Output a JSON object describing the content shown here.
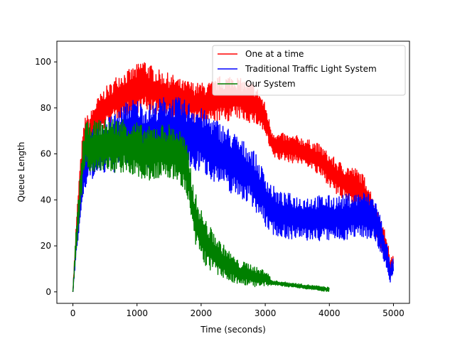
{
  "chart_data": {
    "type": "line",
    "title": "",
    "xlabel": "Time (seconds)",
    "ylabel": "Queue Length",
    "xlim": [
      -250,
      5250
    ],
    "ylim": [
      -5,
      109
    ],
    "xticks": [
      0,
      1000,
      2000,
      3000,
      4000,
      5000
    ],
    "yticks": [
      0,
      20,
      40,
      60,
      80,
      100
    ],
    "grid": false,
    "legend_position": "top-right",
    "series": [
      {
        "name": "One at a time",
        "color": "#ff0000",
        "x": [
          0,
          50,
          100,
          150,
          200,
          250,
          300,
          350,
          400,
          450,
          500,
          600,
          700,
          800,
          900,
          1000,
          1100,
          1200,
          1300,
          1400,
          1500,
          1600,
          1700,
          1800,
          1900,
          2000,
          2100,
          2200,
          2300,
          2400,
          2500,
          2600,
          2700,
          2800,
          2900,
          3000,
          3100,
          3200,
          3300,
          3400,
          3500,
          3600,
          3700,
          3800,
          3900,
          4000,
          4100,
          4200,
          4300,
          4400,
          4500,
          4600,
          4700,
          4800,
          4900,
          4950,
          5000
        ],
        "values": [
          0,
          25,
          45,
          60,
          70,
          68,
          72,
          74,
          76,
          78,
          80,
          82,
          85,
          86,
          87,
          88,
          90,
          88,
          87,
          86,
          85,
          84,
          83,
          83,
          82,
          82,
          82,
          83,
          84,
          84,
          85,
          84,
          83,
          82,
          80,
          75,
          65,
          63,
          63,
          62,
          62,
          61,
          60,
          58,
          56,
          53,
          50,
          48,
          47,
          46,
          44,
          40,
          32,
          25,
          18,
          10,
          14
        ],
        "noise": [
          0,
          4,
          6,
          8,
          8,
          8,
          8,
          9,
          9,
          9,
          9,
          9,
          10,
          10,
          10,
          11,
          12,
          11,
          10,
          10,
          10,
          10,
          9,
          9,
          9,
          9,
          9,
          9,
          10,
          10,
          10,
          9,
          9,
          9,
          8,
          7,
          6,
          6,
          6,
          6,
          6,
          6,
          6,
          7,
          7,
          7,
          8,
          8,
          8,
          8,
          8,
          8,
          8,
          7,
          6,
          4,
          3
        ]
      },
      {
        "name": "Traditional Traffic Light System",
        "color": "#0000ff",
        "x": [
          0,
          50,
          100,
          150,
          200,
          250,
          300,
          400,
          500,
          600,
          700,
          800,
          900,
          1000,
          1100,
          1200,
          1300,
          1400,
          1500,
          1600,
          1700,
          1800,
          1900,
          2000,
          2100,
          2200,
          2300,
          2400,
          2500,
          2600,
          2700,
          2800,
          2900,
          3000,
          3100,
          3200,
          3300,
          3400,
          3500,
          3600,
          3700,
          3800,
          3900,
          4000,
          4100,
          4200,
          4300,
          4400,
          4500,
          4600,
          4700,
          4800,
          4900,
          4950,
          5000
        ],
        "values": [
          0,
          20,
          35,
          48,
          55,
          58,
          60,
          62,
          63,
          64,
          66,
          68,
          70,
          70,
          68,
          68,
          69,
          70,
          70,
          70,
          69,
          68,
          67,
          66,
          64,
          62,
          60,
          58,
          56,
          54,
          52,
          50,
          45,
          40,
          36,
          34,
          33,
          33,
          32,
          32,
          32,
          32,
          32,
          32,
          32,
          32,
          33,
          33,
          34,
          33,
          32,
          25,
          15,
          8,
          12
        ],
        "noise": [
          0,
          5,
          8,
          10,
          10,
          11,
          11,
          12,
          12,
          13,
          13,
          14,
          14,
          14,
          14,
          14,
          14,
          15,
          15,
          15,
          15,
          15,
          15,
          14,
          14,
          14,
          14,
          14,
          14,
          13,
          13,
          13,
          12,
          12,
          11,
          10,
          10,
          10,
          10,
          10,
          10,
          10,
          10,
          10,
          10,
          10,
          10,
          10,
          10,
          10,
          10,
          8,
          6,
          4,
          3
        ]
      },
      {
        "name": "Our System",
        "color": "#008000",
        "x": [
          0,
          50,
          100,
          150,
          200,
          250,
          300,
          400,
          500,
          600,
          700,
          800,
          900,
          1000,
          1100,
          1200,
          1300,
          1400,
          1500,
          1600,
          1700,
          1800,
          1850,
          1900,
          2000,
          2100,
          2200,
          2300,
          2400,
          2500,
          2600,
          2700,
          2800,
          2900,
          3000,
          3050,
          3100,
          3400,
          3700,
          4000
        ],
        "values": [
          0,
          22,
          38,
          55,
          65,
          62,
          63,
          64,
          63,
          64,
          63,
          64,
          62,
          62,
          60,
          60,
          61,
          61,
          61,
          60,
          58,
          50,
          40,
          32,
          25,
          20,
          17,
          14,
          12,
          10,
          8,
          8,
          7,
          6,
          6,
          5,
          4,
          3,
          2,
          1
        ],
        "noise": [
          0,
          6,
          8,
          10,
          10,
          11,
          11,
          11,
          12,
          12,
          12,
          12,
          12,
          12,
          12,
          12,
          12,
          12,
          12,
          12,
          12,
          12,
          12,
          12,
          11,
          10,
          9,
          8,
          7,
          6,
          5,
          5,
          5,
          4,
          4,
          3,
          1,
          1,
          1,
          1
        ]
      }
    ]
  }
}
